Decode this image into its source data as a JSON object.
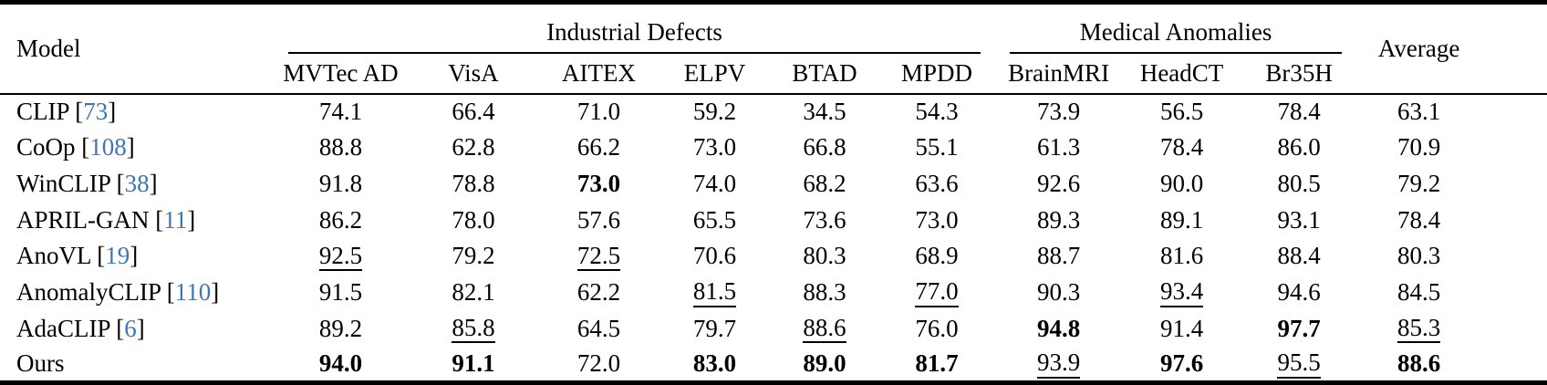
{
  "table": {
    "model_header": "Model",
    "average_header": "Average",
    "citation_color": "#3e76b5",
    "groups": [
      {
        "label": "Industrial Defects",
        "span": 6
      },
      {
        "label": "Medical Anomalies",
        "span": 3
      }
    ],
    "dataset_headers": [
      "MVTec AD",
      "VisA",
      "AITEX",
      "ELPV",
      "BTAD",
      "MPDD",
      "BrainMRI",
      "HeadCT",
      "Br35H"
    ],
    "style_codes": {
      "b": "bold (best)",
      "u": "underline (second best)",
      "": "plain"
    },
    "rows": [
      {
        "model": "CLIP",
        "cite": "73",
        "values": [
          {
            "v": "74.1",
            "s": ""
          },
          {
            "v": "66.4",
            "s": ""
          },
          {
            "v": "71.0",
            "s": ""
          },
          {
            "v": "59.2",
            "s": ""
          },
          {
            "v": "34.5",
            "s": ""
          },
          {
            "v": "54.3",
            "s": ""
          },
          {
            "v": "73.9",
            "s": ""
          },
          {
            "v": "56.5",
            "s": ""
          },
          {
            "v": "78.4",
            "s": ""
          },
          {
            "v": "63.1",
            "s": ""
          }
        ]
      },
      {
        "model": "CoOp",
        "cite": "108",
        "values": [
          {
            "v": "88.8",
            "s": ""
          },
          {
            "v": "62.8",
            "s": ""
          },
          {
            "v": "66.2",
            "s": ""
          },
          {
            "v": "73.0",
            "s": ""
          },
          {
            "v": "66.8",
            "s": ""
          },
          {
            "v": "55.1",
            "s": ""
          },
          {
            "v": "61.3",
            "s": ""
          },
          {
            "v": "78.4",
            "s": ""
          },
          {
            "v": "86.0",
            "s": ""
          },
          {
            "v": "70.9",
            "s": ""
          }
        ]
      },
      {
        "model": "WinCLIP",
        "cite": "38",
        "values": [
          {
            "v": "91.8",
            "s": ""
          },
          {
            "v": "78.8",
            "s": ""
          },
          {
            "v": "73.0",
            "s": "b"
          },
          {
            "v": "74.0",
            "s": ""
          },
          {
            "v": "68.2",
            "s": ""
          },
          {
            "v": "63.6",
            "s": ""
          },
          {
            "v": "92.6",
            "s": ""
          },
          {
            "v": "90.0",
            "s": ""
          },
          {
            "v": "80.5",
            "s": ""
          },
          {
            "v": "79.2",
            "s": ""
          }
        ]
      },
      {
        "model": "APRIL-GAN",
        "cite": "11",
        "values": [
          {
            "v": "86.2",
            "s": ""
          },
          {
            "v": "78.0",
            "s": ""
          },
          {
            "v": "57.6",
            "s": ""
          },
          {
            "v": "65.5",
            "s": ""
          },
          {
            "v": "73.6",
            "s": ""
          },
          {
            "v": "73.0",
            "s": ""
          },
          {
            "v": "89.3",
            "s": ""
          },
          {
            "v": "89.1",
            "s": ""
          },
          {
            "v": "93.1",
            "s": ""
          },
          {
            "v": "78.4",
            "s": ""
          }
        ]
      },
      {
        "model": "AnoVL",
        "cite": "19",
        "values": [
          {
            "v": "92.5",
            "s": "u"
          },
          {
            "v": "79.2",
            "s": ""
          },
          {
            "v": "72.5",
            "s": "u"
          },
          {
            "v": "70.6",
            "s": ""
          },
          {
            "v": "80.3",
            "s": ""
          },
          {
            "v": "68.9",
            "s": ""
          },
          {
            "v": "88.7",
            "s": ""
          },
          {
            "v": "81.6",
            "s": ""
          },
          {
            "v": "88.4",
            "s": ""
          },
          {
            "v": "80.3",
            "s": ""
          }
        ]
      },
      {
        "model": "AnomalyCLIP",
        "cite": "110",
        "values": [
          {
            "v": "91.5",
            "s": ""
          },
          {
            "v": "82.1",
            "s": ""
          },
          {
            "v": "62.2",
            "s": ""
          },
          {
            "v": "81.5",
            "s": "u"
          },
          {
            "v": "88.3",
            "s": ""
          },
          {
            "v": "77.0",
            "s": "u"
          },
          {
            "v": "90.3",
            "s": ""
          },
          {
            "v": "93.4",
            "s": "u"
          },
          {
            "v": "94.6",
            "s": ""
          },
          {
            "v": "84.5",
            "s": ""
          }
        ]
      },
      {
        "model": "AdaCLIP",
        "cite": "6",
        "values": [
          {
            "v": "89.2",
            "s": ""
          },
          {
            "v": "85.8",
            "s": "u"
          },
          {
            "v": "64.5",
            "s": ""
          },
          {
            "v": "79.7",
            "s": ""
          },
          {
            "v": "88.6",
            "s": "u"
          },
          {
            "v": "76.0",
            "s": ""
          },
          {
            "v": "94.8",
            "s": "b"
          },
          {
            "v": "91.4",
            "s": ""
          },
          {
            "v": "97.7",
            "s": "b"
          },
          {
            "v": "85.3",
            "s": "u"
          }
        ]
      },
      {
        "model": "Ours",
        "cite": null,
        "values": [
          {
            "v": "94.0",
            "s": "b"
          },
          {
            "v": "91.1",
            "s": "b"
          },
          {
            "v": "72.0",
            "s": ""
          },
          {
            "v": "83.0",
            "s": "b"
          },
          {
            "v": "89.0",
            "s": "b"
          },
          {
            "v": "81.7",
            "s": "b"
          },
          {
            "v": "93.9",
            "s": "u"
          },
          {
            "v": "97.6",
            "s": "b"
          },
          {
            "v": "95.5",
            "s": "u"
          },
          {
            "v": "88.6",
            "s": "b"
          }
        ]
      }
    ]
  }
}
